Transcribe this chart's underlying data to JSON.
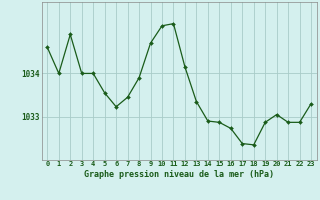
{
  "x": [
    0,
    1,
    2,
    3,
    4,
    5,
    6,
    7,
    8,
    9,
    10,
    11,
    12,
    13,
    14,
    15,
    16,
    17,
    18,
    19,
    20,
    21,
    22,
    23
  ],
  "y": [
    1034.6,
    1034.0,
    1034.9,
    1034.0,
    1034.0,
    1033.55,
    1033.23,
    1033.45,
    1033.9,
    1034.7,
    1035.1,
    1035.15,
    1034.15,
    1033.35,
    1032.9,
    1032.87,
    1032.73,
    1032.38,
    1032.35,
    1032.87,
    1033.05,
    1032.87,
    1032.87,
    1033.3
  ],
  "line_color": "#1a5c1a",
  "marker_color": "#1a5c1a",
  "bg_color": "#d4f0ee",
  "grid_color_major": "#a8ccc8",
  "xlabel": "Graphe pression niveau de la mer (hPa)",
  "tick_color": "#1a5c1a",
  "ylim": [
    1032.0,
    1035.65
  ],
  "xlim": [
    -0.5,
    23.5
  ]
}
